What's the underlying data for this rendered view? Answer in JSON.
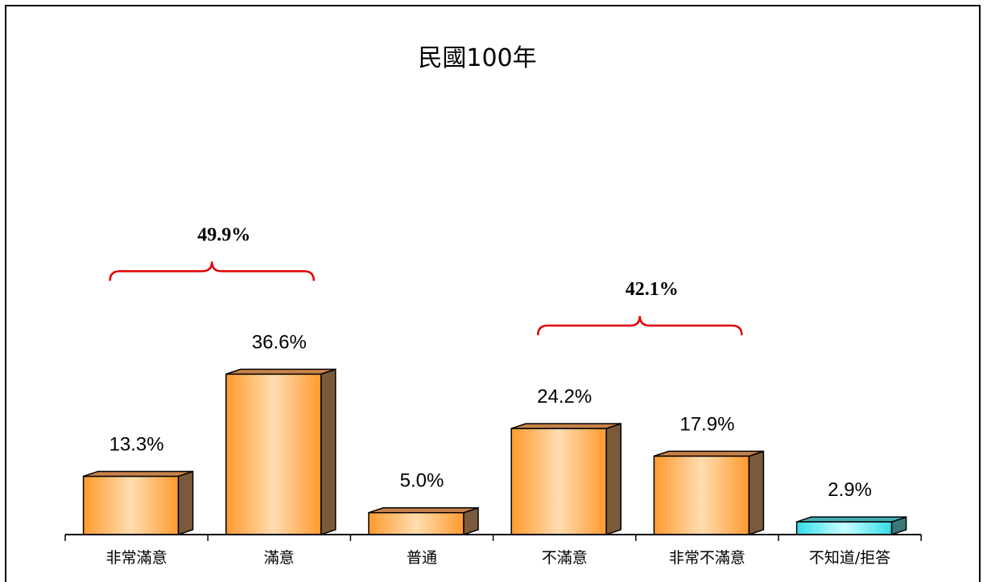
{
  "chart_data": {
    "type": "bar",
    "title": "民國100年",
    "categories": [
      "非常滿意",
      "滿意",
      "普通",
      "不滿意",
      "非常不滿意",
      "不知道/拒答"
    ],
    "values": [
      13.3,
      36.6,
      5.0,
      24.2,
      17.9,
      2.9
    ],
    "value_labels": [
      "13.3%",
      "36.6%",
      "5.0%",
      "24.2%",
      "17.9%",
      "2.9%"
    ],
    "ylim": [
      0,
      55
    ],
    "xlabel": "",
    "ylabel": "",
    "grid": false,
    "bar_colors": {
      "default": {
        "light": "#FFDDB0",
        "dark": "#FF9A2E",
        "side": "#7A5A3A",
        "top": "#C8824A"
      },
      "last": {
        "light": "#C8FFFF",
        "dark": "#33DDE8",
        "side": "#3A7878",
        "top": "#46AEB4"
      }
    },
    "annotations": [
      {
        "type": "brace",
        "label": "49.9%",
        "from_category": 0,
        "to_category": 1,
        "color": "#E00000"
      },
      {
        "type": "brace",
        "label": "42.1%",
        "from_category": 3,
        "to_category": 4,
        "color": "#E00000"
      }
    ]
  }
}
